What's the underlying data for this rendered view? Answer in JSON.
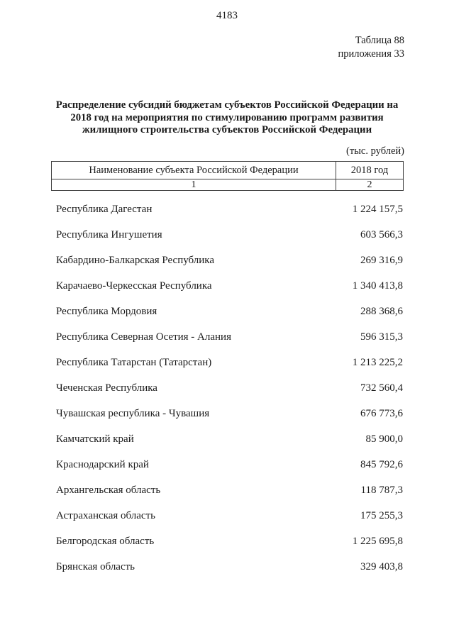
{
  "page": {
    "number": "4183",
    "table_ref_lines": [
      "Таблица 88",
      "приложения 33"
    ],
    "title_lines": [
      "Распределение субсидий бюджетам субъектов Российской Федерации на",
      "2018 год на мероприятия по стимулированию программ развития",
      "жилищного строительства субъектов Российской Федерации"
    ],
    "units": "(тыс. рублей)"
  },
  "table": {
    "header": {
      "col1": "Наименование субъекта Российской Федерации",
      "col2": "2018 год",
      "idx1": "1",
      "idx2": "2"
    },
    "rows": [
      {
        "name": "Республика Дагестан",
        "value": "1 224 157,5"
      },
      {
        "name": "Республика Ингушетия",
        "value": "603 566,3"
      },
      {
        "name": "Кабардино-Балкарская Республика",
        "value": "269 316,9"
      },
      {
        "name": "Карачаево-Черкесская Республика",
        "value": "1 340 413,8"
      },
      {
        "name": "Республика Мордовия",
        "value": "288 368,6"
      },
      {
        "name": "Республика Северная Осетия - Алания",
        "value": "596 315,3"
      },
      {
        "name": "Республика Татарстан (Татарстан)",
        "value": "1 213 225,2"
      },
      {
        "name": "Чеченская Республика",
        "value": "732 560,4"
      },
      {
        "name": "Чувашская республика - Чувашия",
        "value": "676 773,6"
      },
      {
        "name": "Камчатский край",
        "value": "85 900,0"
      },
      {
        "name": "Краснодарский край",
        "value": "845 792,6"
      },
      {
        "name": "Архангельская область",
        "value": "118 787,3"
      },
      {
        "name": "Астраханская область",
        "value": "175 255,3"
      },
      {
        "name": "Белгородская область",
        "value": "1 225 695,8"
      },
      {
        "name": "Брянская область",
        "value": "329 403,8"
      }
    ],
    "text_color": "#1b1b1b",
    "border_color": "#3f3f3f"
  }
}
